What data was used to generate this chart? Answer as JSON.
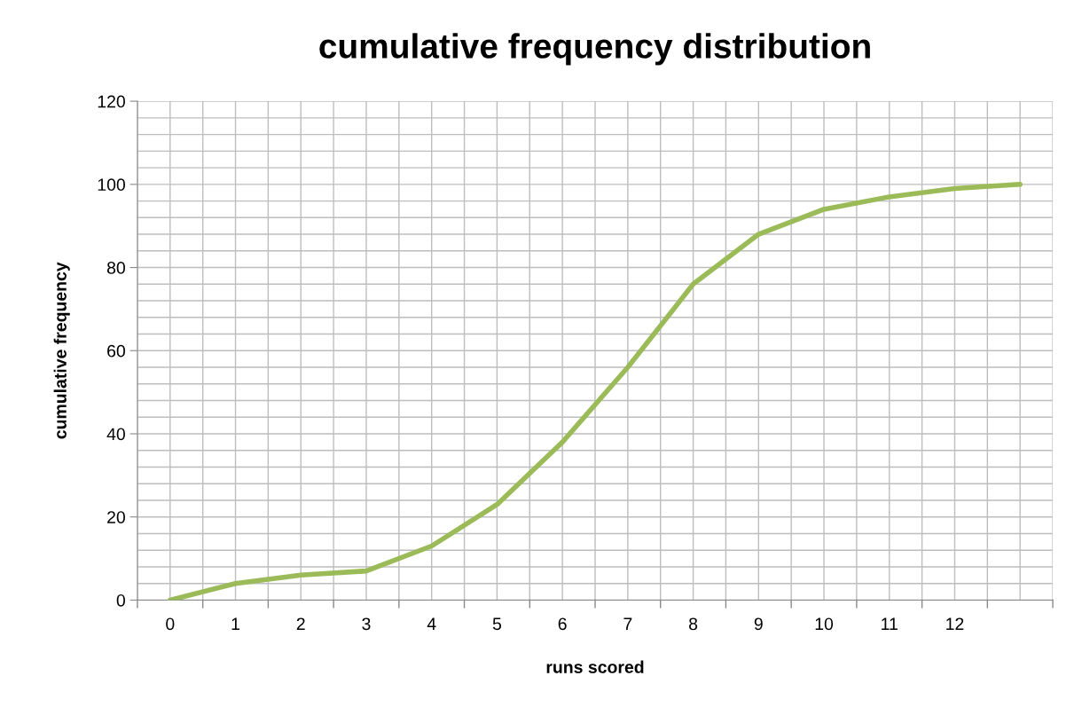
{
  "chart_data": {
    "type": "line",
    "title": "cumulative frequency distribution",
    "xlabel": "runs scored",
    "ylabel": "cumulative frequency",
    "categories": [
      "0",
      "1",
      "2",
      "3",
      "4",
      "5",
      "6",
      "7",
      "8",
      "9",
      "10",
      "11",
      "12",
      null
    ],
    "series": [
      {
        "color": "#9bbb59",
        "values": [
          0,
          4,
          6,
          7,
          13,
          23,
          38,
          56,
          76,
          88,
          94,
          97,
          99,
          100
        ]
      }
    ],
    "ylim": [
      0,
      120
    ],
    "yticks": [
      0,
      {
        "value": 4,
        "label": null
      },
      {
        "value": 8,
        "label": null
      },
      {
        "value": 12,
        "label": null
      },
      {
        "value": 16,
        "label": null
      },
      20,
      {
        "value": 24,
        "label": null
      },
      {
        "value": 28,
        "label": null
      },
      {
        "value": 32,
        "label": null
      },
      {
        "value": 36,
        "label": null
      },
      40,
      {
        "value": 44,
        "label": null
      },
      {
        "value": 48,
        "label": null
      },
      {
        "value": 52,
        "label": null
      },
      {
        "value": 56,
        "label": null
      },
      60,
      {
        "value": 64,
        "label": null
      },
      {
        "value": 68,
        "label": null
      },
      {
        "value": 72,
        "label": null
      },
      {
        "value": 76,
        "label": null
      },
      80,
      {
        "value": 84,
        "label": null
      },
      {
        "value": 88,
        "label": null
      },
      {
        "value": 92,
        "label": null
      },
      {
        "value": 96,
        "label": null
      },
      100,
      {
        "value": 104,
        "label": null
      },
      {
        "value": 108,
        "label": null
      },
      {
        "value": 112,
        "label": null
      },
      {
        "value": 116,
        "label": null
      },
      120
    ],
    "grid": true,
    "legend": false,
    "marker": "none",
    "line_style": "solid"
  }
}
